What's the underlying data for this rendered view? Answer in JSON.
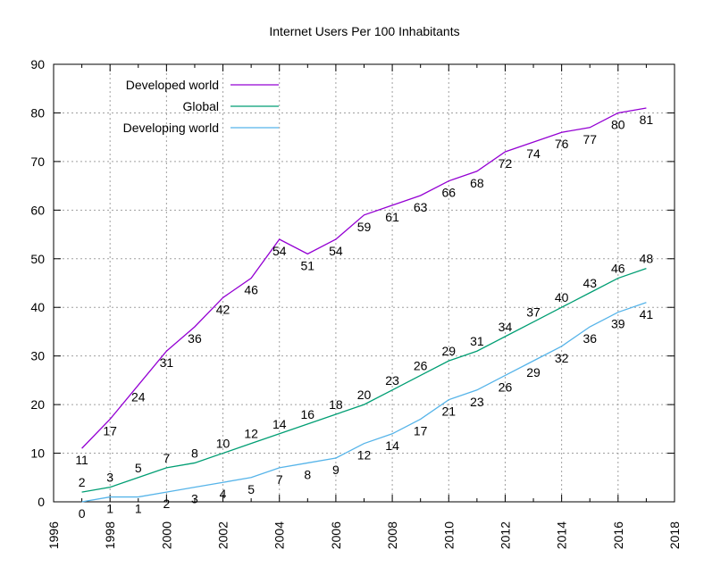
{
  "chart_data": {
    "type": "line",
    "title": "Internet Users Per 100 Inhabitants",
    "xlabel": "",
    "ylabel": "",
    "xlim": [
      1996,
      2018
    ],
    "ylim": [
      0,
      90
    ],
    "xticks": [
      1996,
      1998,
      2000,
      2002,
      2004,
      2006,
      2008,
      2010,
      2012,
      2014,
      2016,
      2018
    ],
    "yticks": [
      0,
      10,
      20,
      30,
      40,
      50,
      60,
      70,
      80,
      90
    ],
    "grid": true,
    "legend": "top-left",
    "x": [
      1997,
      1998,
      1999,
      2000,
      2001,
      2002,
      2003,
      2004,
      2005,
      2006,
      2007,
      2008,
      2009,
      2010,
      2011,
      2012,
      2013,
      2014,
      2015,
      2016,
      2017
    ],
    "series": [
      {
        "name": "Developed world",
        "color": "#9400d3",
        "values": [
          11,
          17,
          24,
          31,
          36,
          42,
          46,
          54,
          51,
          54,
          59,
          61,
          63,
          66,
          68,
          72,
          74,
          76,
          77,
          80,
          81
        ]
      },
      {
        "name": "Global",
        "color": "#009e73",
        "values": [
          2,
          3,
          5,
          7,
          8,
          10,
          12,
          14,
          16,
          18,
          20,
          23,
          26,
          29,
          31,
          34,
          37,
          40,
          43,
          46,
          48
        ]
      },
      {
        "name": "Developing world",
        "color": "#56b4e9",
        "values": [
          0,
          1,
          1,
          2,
          3,
          4,
          5,
          7,
          8,
          9,
          12,
          14,
          17,
          21,
          23,
          26,
          29,
          32,
          36,
          39,
          41
        ]
      }
    ]
  }
}
